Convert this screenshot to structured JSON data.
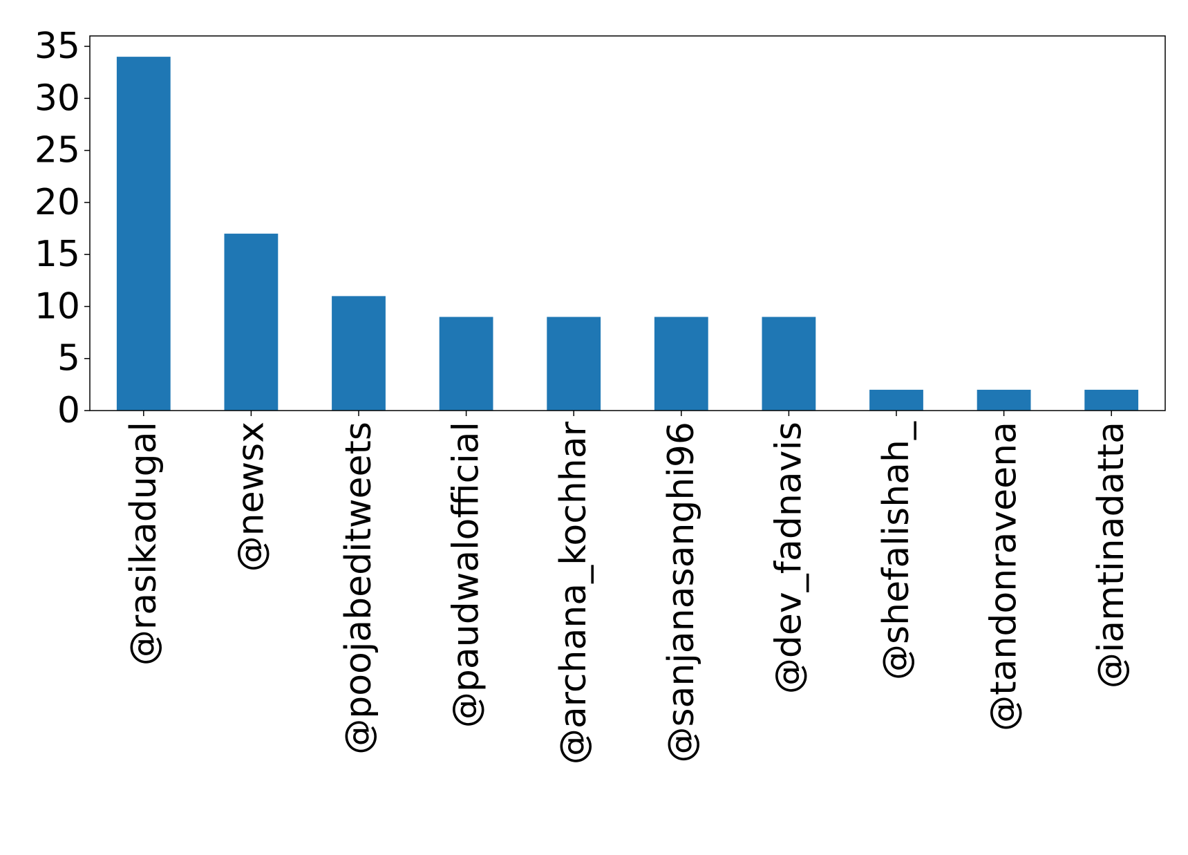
{
  "chart_data": {
    "type": "bar",
    "title": "",
    "xlabel": "",
    "ylabel": "",
    "categories": [
      "@rasikadugal",
      "@newsx",
      "@poojabeditweets",
      "@paudwalofficial",
      "@archana_kochhar",
      "@sanjanasanghi96",
      "@dev_fadnavis",
      "@shefalishah_",
      "@tandonraveena",
      "@iamtinadatta"
    ],
    "values": [
      34,
      17,
      11,
      9,
      9,
      9,
      9,
      2,
      2,
      2
    ],
    "ylim": [
      0,
      36
    ],
    "yticks": [
      0,
      5,
      10,
      15,
      20,
      25,
      30,
      35
    ],
    "bar_color": "#1f77b4",
    "grid": false,
    "legend": "none"
  }
}
